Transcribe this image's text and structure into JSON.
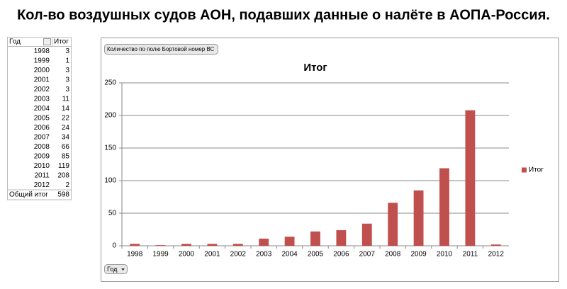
{
  "header": {
    "title": "Кол-во воздушных судов АОН, подавших данные о налёте в АОПА-Россия."
  },
  "table": {
    "columns": [
      "Год",
      "Итог"
    ],
    "rows": [
      [
        1998,
        3
      ],
      [
        1999,
        1
      ],
      [
        2000,
        3
      ],
      [
        2001,
        3
      ],
      [
        2002,
        3
      ],
      [
        2003,
        11
      ],
      [
        2004,
        14
      ],
      [
        2005,
        22
      ],
      [
        2006,
        24
      ],
      [
        2007,
        34
      ],
      [
        2008,
        66
      ],
      [
        2009,
        85
      ],
      [
        2010,
        119
      ],
      [
        2011,
        208
      ],
      [
        2012,
        2
      ]
    ],
    "total": [
      "Общий итог",
      598
    ]
  },
  "chart_data": {
    "type": "bar",
    "title": "Итог",
    "field_button": "Количество по полю Бортовой номер ВС",
    "filter_button": "Год",
    "categories": [
      "1998",
      "1999",
      "2000",
      "2001",
      "2002",
      "2003",
      "2004",
      "2005",
      "2006",
      "2007",
      "2008",
      "2009",
      "2010",
      "2011",
      "2012"
    ],
    "series": [
      {
        "name": "Итог",
        "color": "#c0504d",
        "values": [
          3,
          1,
          3,
          3,
          3,
          11,
          14,
          22,
          24,
          34,
          66,
          85,
          119,
          208,
          2
        ]
      }
    ],
    "ylim": [
      0,
      250
    ],
    "yticks": [
      0,
      50,
      100,
      150,
      200,
      250
    ],
    "grid": true,
    "legend": "right"
  }
}
